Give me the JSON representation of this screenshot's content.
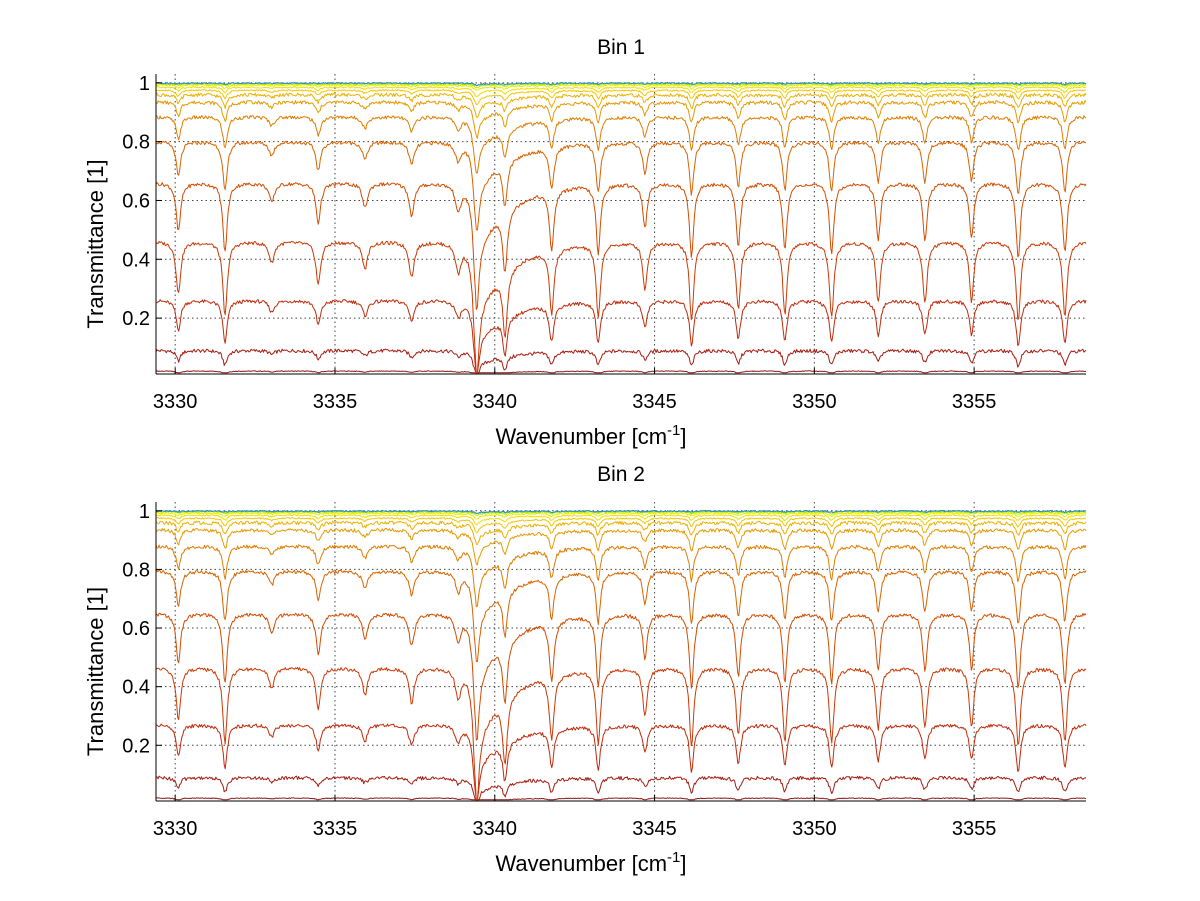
{
  "chart_data": [
    {
      "type": "line",
      "title": "Bin 1",
      "xlabel": "Wavenumber [cm",
      "xlabel_sup": "-1",
      "xlabel_end": "]",
      "ylabel": "Transmittance [1]",
      "xlim": [
        3329.4,
        3358.5
      ],
      "ylim": [
        0.01,
        1.03
      ],
      "xticks": [
        "3330",
        "3335",
        "3340",
        "3345",
        "3350",
        "3355"
      ],
      "xtick_values": [
        3330,
        3335,
        3340,
        3345,
        3350,
        3355
      ],
      "yticks": [
        "0.2",
        "0.4",
        "0.6",
        "0.8",
        "1"
      ],
      "ytick_values": [
        0.2,
        0.4,
        0.6,
        0.8,
        1.0
      ],
      "grid": true,
      "line_region": [
        3332.5,
        3339.3
      ],
      "series": [
        {
          "baseline": 0.02,
          "color": "#8b1a1a"
        },
        {
          "baseline": 0.09,
          "color": "#a51d12"
        },
        {
          "baseline": 0.26,
          "color": "#c02a0c"
        },
        {
          "baseline": 0.46,
          "color": "#cc3a06"
        },
        {
          "baseline": 0.66,
          "color": "#d44c00"
        },
        {
          "baseline": 0.8,
          "color": "#d96400"
        },
        {
          "baseline": 0.885,
          "color": "#df7e00"
        },
        {
          "baseline": 0.935,
          "color": "#e69a00"
        },
        {
          "baseline": 0.96,
          "color": "#ecb200"
        },
        {
          "baseline": 0.975,
          "color": "#f1c800"
        },
        {
          "baseline": 0.985,
          "color": "#f3dc00"
        },
        {
          "baseline": 0.992,
          "color": "#e8ee00"
        },
        {
          "baseline": 0.996,
          "color": "#c8f000"
        },
        {
          "baseline": 0.998,
          "color": "#7fe030"
        },
        {
          "baseline": 0.999,
          "color": "#2a8ad0"
        }
      ]
    },
    {
      "type": "line",
      "title": "Bin 2",
      "xlabel": "Wavenumber [cm",
      "xlabel_sup": "-1",
      "xlabel_end": "]",
      "ylabel": "Transmittance [1]",
      "xlim": [
        3329.4,
        3358.5
      ],
      "ylim": [
        0.01,
        1.03
      ],
      "xticks": [
        "3330",
        "3335",
        "3340",
        "3345",
        "3350",
        "3355"
      ],
      "xtick_values": [
        3330,
        3335,
        3340,
        3345,
        3350,
        3355
      ],
      "yticks": [
        "0.2",
        "0.4",
        "0.6",
        "0.8",
        "1"
      ],
      "ytick_values": [
        0.2,
        0.4,
        0.6,
        0.8,
        1.0
      ],
      "grid": true,
      "line_region": [
        3332.5,
        3339.3
      ],
      "series": [
        {
          "baseline": 0.02,
          "color": "#8b1a1a"
        },
        {
          "baseline": 0.09,
          "color": "#a51d12"
        },
        {
          "baseline": 0.27,
          "color": "#c02a0c"
        },
        {
          "baseline": 0.465,
          "color": "#cc3a06"
        },
        {
          "baseline": 0.65,
          "color": "#d44c00"
        },
        {
          "baseline": 0.795,
          "color": "#d96400"
        },
        {
          "baseline": 0.88,
          "color": "#df7e00"
        },
        {
          "baseline": 0.935,
          "color": "#e69a00"
        },
        {
          "baseline": 0.96,
          "color": "#ecb200"
        },
        {
          "baseline": 0.975,
          "color": "#f1c800"
        },
        {
          "baseline": 0.985,
          "color": "#f3dc00"
        },
        {
          "baseline": 0.992,
          "color": "#e8ee00"
        },
        {
          "baseline": 0.996,
          "color": "#c8f000"
        },
        {
          "baseline": 0.998,
          "color": "#7fe030"
        },
        {
          "baseline": 0.999,
          "color": "#2a8ad0"
        }
      ]
    }
  ]
}
